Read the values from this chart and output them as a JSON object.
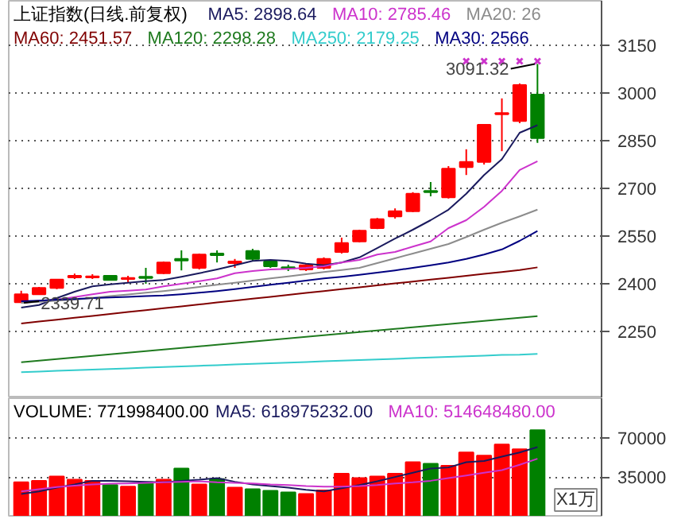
{
  "chart_data": [
    {
      "type": "candlestick",
      "title": "上证指数(日线.前复权)",
      "categories": [
        null,
        null,
        null,
        null,
        null,
        null,
        null,
        null,
        null,
        null,
        null,
        null,
        null,
        null,
        null,
        null,
        null,
        null,
        null,
        null,
        null,
        null,
        null,
        null,
        null,
        null,
        null,
        null,
        null,
        null
      ],
      "ohlc": [
        [
          2342,
          2378,
          2339.71,
          2367
        ],
        [
          2367,
          2390,
          2365,
          2387
        ],
        [
          2387,
          2415,
          2383,
          2413
        ],
        [
          2420,
          2432,
          2415,
          2425
        ],
        [
          2420,
          2430,
          2415,
          2423
        ],
        [
          2425,
          2427,
          2410,
          2412
        ],
        [
          2415,
          2425,
          2405,
          2418
        ],
        [
          2422,
          2450,
          2400,
          2418
        ],
        [
          2433,
          2470,
          2430,
          2467
        ],
        [
          2478,
          2505,
          2442,
          2473
        ],
        [
          2450,
          2495,
          2445,
          2492
        ],
        [
          2495,
          2505,
          2467,
          2490
        ],
        [
          2465,
          2478,
          2450,
          2470
        ],
        [
          2503,
          2510,
          2472,
          2478
        ],
        [
          2470,
          2472,
          2450,
          2455
        ],
        [
          2452,
          2460,
          2440,
          2448
        ],
        [
          2445,
          2462,
          2440,
          2458
        ],
        [
          2450,
          2483,
          2445,
          2478
        ],
        [
          2500,
          2545,
          2495,
          2528
        ],
        [
          2533,
          2570,
          2530,
          2567
        ],
        [
          2575,
          2607,
          2572,
          2603
        ],
        [
          2612,
          2637,
          2605,
          2628
        ],
        [
          2628,
          2688,
          2625,
          2683
        ],
        [
          2692,
          2720,
          2675,
          2688
        ],
        [
          2672,
          2770,
          2668,
          2762
        ],
        [
          2767,
          2823,
          2742,
          2783
        ],
        [
          2783,
          2900,
          2775,
          2900
        ],
        [
          2933,
          2983,
          2817,
          2937
        ],
        [
          2912,
          3030,
          2905,
          3025
        ],
        [
          2995,
          3091.32,
          2843,
          2858
        ]
      ],
      "colors": [
        "#ff0000",
        "#ff0000",
        "#ff0000",
        "#ff0000",
        "#ff0000",
        "#008000",
        "#ff0000",
        "#008000",
        "#ff0000",
        "#008000",
        "#ff0000",
        "#008000",
        "#ff0000",
        "#008000",
        "#008000",
        "#008000",
        "#ff0000",
        "#ff0000",
        "#ff0000",
        "#ff0000",
        "#ff0000",
        "#ff0000",
        "#ff0000",
        "#008000",
        "#ff0000",
        "#ff0000",
        "#ff0000",
        "#ff0000",
        "#ff0000",
        "#008000"
      ],
      "series": [
        {
          "type": "line",
          "name": "MA5: 2898.64",
          "color": "#1a1a5e",
          "values": [
            2325,
            2333,
            2355,
            2375,
            2392,
            2398,
            2403,
            2408,
            2412,
            2422,
            2433,
            2445,
            2458,
            2472,
            2475,
            2472,
            2463,
            2458,
            2467,
            2483,
            2512,
            2542,
            2570,
            2600,
            2633,
            2683,
            2742,
            2792,
            2875,
            2898.64
          ]
        },
        {
          "type": "line",
          "name": "MA10: 2785.46",
          "color": "#cc33cc",
          "values": [
            2342,
            2346,
            2350,
            2358,
            2367,
            2375,
            2378,
            2382,
            2392,
            2400,
            2408,
            2417,
            2433,
            2440,
            2445,
            2447,
            2450,
            2455,
            2467,
            2475,
            2492,
            2500,
            2517,
            2533,
            2575,
            2600,
            2642,
            2692,
            2758,
            2785.46
          ]
        },
        {
          "type": "line",
          "name": "MA20: 26",
          "color": "#8c8c8c",
          "values": [
            2340,
            2343,
            2347,
            2350,
            2355,
            2361,
            2366,
            2372,
            2377,
            2383,
            2390,
            2397,
            2403,
            2410,
            2417,
            2423,
            2430,
            2437,
            2443,
            2450,
            2465,
            2480,
            2495,
            2510,
            2525,
            2547,
            2570,
            2592,
            2612,
            2633
          ]
        },
        {
          "type": "line",
          "name": "MA60: 2451.57",
          "color": "#800000",
          "values": [
            2275,
            2281,
            2287,
            2293,
            2299,
            2305,
            2311,
            2317,
            2323,
            2329,
            2335,
            2341,
            2347,
            2353,
            2359,
            2365,
            2371,
            2377,
            2383,
            2389,
            2395,
            2401,
            2407,
            2413,
            2419,
            2425,
            2431,
            2437,
            2443,
            2451.57
          ]
        },
        {
          "type": "line",
          "name": "MA120: 2298.28",
          "color": "#1f7a1f",
          "values": [
            2153,
            2158,
            2163,
            2168,
            2173,
            2178,
            2183,
            2188,
            2193,
            2198,
            2203,
            2208,
            2213,
            2218,
            2223,
            2228,
            2233,
            2238,
            2243,
            2248,
            2253,
            2258,
            2263,
            2268,
            2273,
            2278,
            2283,
            2288,
            2293,
            2298.28
          ]
        },
        {
          "type": "line",
          "name": "MA250: 2179.25",
          "color": "#33cccc",
          "values": [
            2122,
            2124,
            2126,
            2128,
            2130,
            2132,
            2134,
            2136,
            2138,
            2140,
            2142,
            2144,
            2146,
            2148,
            2150,
            2152,
            2154,
            2156,
            2158,
            2160,
            2162,
            2164,
            2166,
            2168,
            2170,
            2172,
            2174,
            2176,
            2177,
            2179.25
          ]
        },
        {
          "type": "line",
          "name": "MA30: 2566",
          "color": "#000080",
          "values": [
            2345,
            2347,
            2350,
            2352,
            2355,
            2357,
            2359,
            2361,
            2363,
            2367,
            2372,
            2377,
            2383,
            2390,
            2397,
            2403,
            2410,
            2417,
            2422,
            2428,
            2435,
            2442,
            2450,
            2458,
            2467,
            2478,
            2492,
            2508,
            2535,
            2566
          ]
        },
        {
          "type": "scatter",
          "marker": "cross",
          "color": "#cc33cc",
          "values": [
            null,
            null,
            null,
            null,
            null,
            null,
            null,
            null,
            null,
            null,
            null,
            null,
            null,
            null,
            null,
            null,
            null,
            null,
            null,
            null,
            null,
            null,
            null,
            null,
            null,
            3100,
            3100,
            3100,
            3100,
            3100
          ]
        }
      ],
      "annotations": [
        {
          "text": "3091.32",
          "y": 3091.32
        },
        {
          "text": "2339.71",
          "y": 2339.71
        }
      ],
      "ylim": [
        2040,
        3290
      ],
      "yticks": [
        2250,
        2400,
        2550,
        2700,
        2850,
        3000,
        3150
      ],
      "grid": "y",
      "legend": "top left"
    },
    {
      "type": "bar",
      "title": "VOLUME: 771998400.00",
      "categories": [
        null,
        null,
        null,
        null,
        null,
        null,
        null,
        null,
        null,
        null,
        null,
        null,
        null,
        null,
        null,
        null,
        null,
        null,
        null,
        null,
        null,
        null,
        null,
        null,
        null,
        null,
        null,
        null,
        null,
        null
      ],
      "series": [
        {
          "type": "bar",
          "colors": [
            "#ff0000",
            "#ff0000",
            "#ff0000",
            "#ff0000",
            "#ff0000",
            "#008000",
            "#ff0000",
            "#008000",
            "#ff0000",
            "#008000",
            "#ff0000",
            "#008000",
            "#ff0000",
            "#008000",
            "#008000",
            "#008000",
            "#ff0000",
            "#ff0000",
            "#ff0000",
            "#ff0000",
            "#ff0000",
            "#ff0000",
            "#ff0000",
            "#008000",
            "#ff0000",
            "#ff0000",
            "#ff0000",
            "#ff0000",
            "#ff0000",
            "#008000"
          ],
          "values": [
            30200,
            31600,
            35500,
            32600,
            31600,
            27800,
            26400,
            30200,
            32600,
            42700,
            28300,
            33100,
            25400,
            24000,
            22500,
            21100,
            19700,
            23000,
            37900,
            34000,
            35500,
            37900,
            48400,
            47000,
            45100,
            57100,
            54200,
            64300,
            59900,
            77199.84
          ]
        },
        {
          "type": "line",
          "name": "MA5: 618975232.00",
          "color": "#1a1a5e",
          "values": [
            19700,
            22000,
            25400,
            28300,
            31600,
            31600,
            31200,
            30700,
            30200,
            31600,
            32600,
            34000,
            30700,
            28300,
            26900,
            25400,
            23500,
            22000,
            24900,
            27800,
            31200,
            35000,
            38800,
            42700,
            43600,
            48400,
            49400,
            53300,
            57100,
            61897.5
          ]
        },
        {
          "type": "line",
          "name": "MA10: 514648480.00",
          "color": "#cc33cc",
          "values": [
            22000,
            24000,
            26000,
            27300,
            28300,
            29000,
            29200,
            29700,
            30200,
            30700,
            31200,
            30200,
            29700,
            29200,
            28300,
            27800,
            26900,
            26400,
            26400,
            26900,
            27800,
            29200,
            30200,
            31600,
            34000,
            36400,
            38800,
            41200,
            46000,
            51464.8
          ]
        }
      ],
      "annotations": [
        "X1万"
      ],
      "ylim": [
        0,
        106000
      ],
      "yticks": [
        35000,
        70000
      ],
      "grid": "y",
      "legend": "top"
    }
  ]
}
